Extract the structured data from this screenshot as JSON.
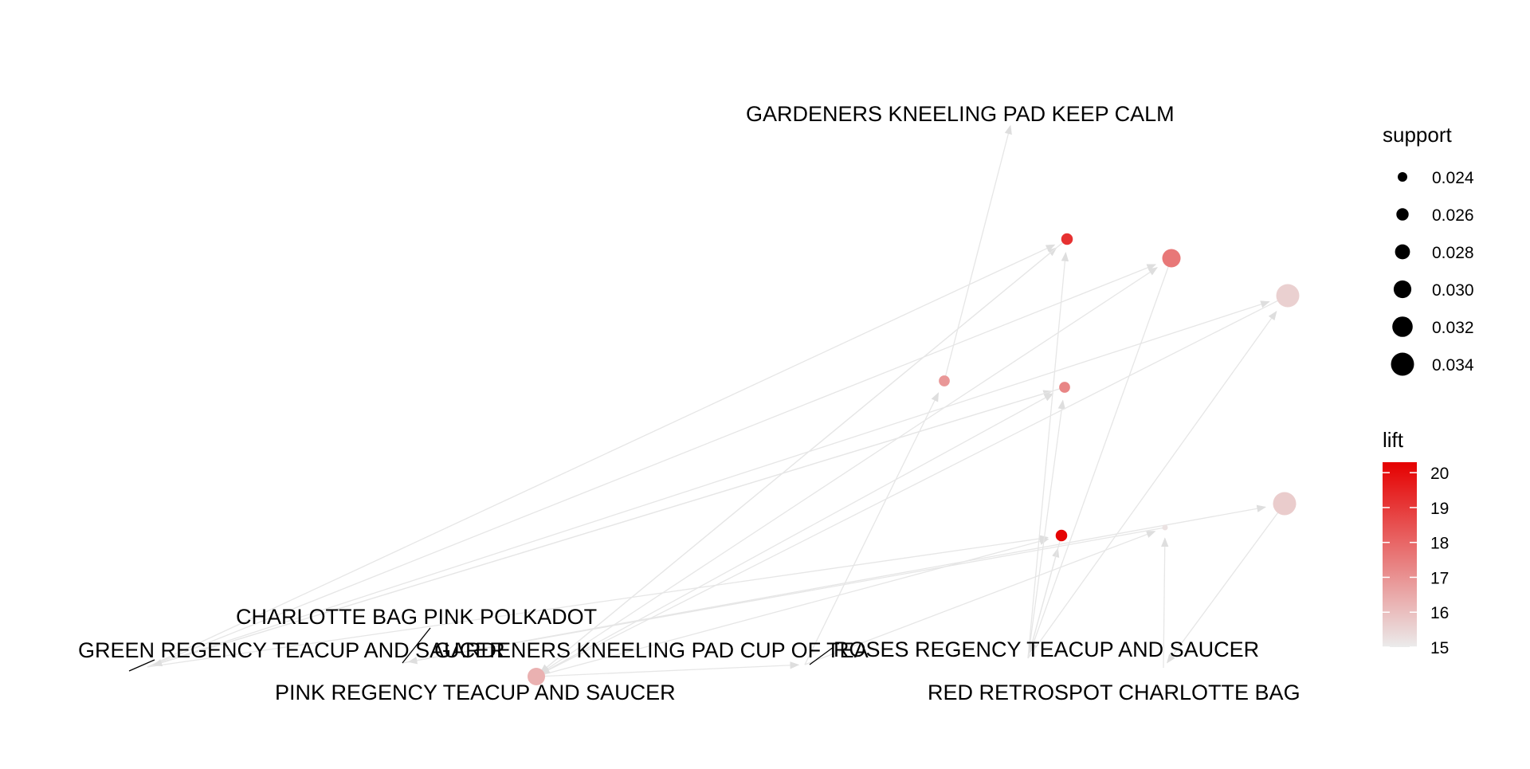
{
  "graph": {
    "items": [
      {
        "id": "gardeners_calm",
        "label": "GARDENERS KNEELING PAD KEEP CALM"
      },
      {
        "id": "charlotte_pink",
        "label": "CHARLOTTE BAG PINK POLKADOT"
      },
      {
        "id": "green_teacup",
        "label": "GREEN REGENCY TEACUP AND SAUCER"
      },
      {
        "id": "gardeners_cup",
        "label": "GARDENERS KNEELING PAD CUP OF TEA"
      },
      {
        "id": "roses_teacup",
        "label": "ROSES REGENCY TEACUP AND SAUCER"
      },
      {
        "id": "pink_teacup",
        "label": "PINK REGENCY TEACUP AND SAUCER"
      },
      {
        "id": "red_charlotte",
        "label": "RED RETROSPOT CHARLOTTE BAG"
      }
    ],
    "rules": [
      {
        "id": "r1",
        "support": 0.0255,
        "lift": 19.2
      },
      {
        "id": "r2",
        "support": 0.0305,
        "lift": 17.6
      },
      {
        "id": "r3",
        "support": 0.034,
        "lift": 15.6
      },
      {
        "id": "r4",
        "support": 0.025,
        "lift": 16.9
      },
      {
        "id": "r5",
        "support": 0.025,
        "lift": 17.3
      },
      {
        "id": "r6",
        "support": 0.0255,
        "lift": 20.2
      },
      {
        "id": "r7",
        "support": 0.023,
        "lift": 15.2
      },
      {
        "id": "r8",
        "support": 0.034,
        "lift": 15.7
      },
      {
        "id": "r9",
        "support": 0.0275,
        "lift": 16.3
      }
    ],
    "edges": [
      [
        "green_teacup",
        "r1"
      ],
      [
        "green_teacup",
        "r2"
      ],
      [
        "green_teacup",
        "r3"
      ],
      [
        "green_teacup",
        "r5"
      ],
      [
        "green_teacup",
        "r6"
      ],
      [
        "pink_teacup",
        "r1"
      ],
      [
        "pink_teacup",
        "r2"
      ],
      [
        "pink_teacup",
        "r6"
      ],
      [
        "pink_teacup",
        "r5"
      ],
      [
        "roses_teacup",
        "r1"
      ],
      [
        "roses_teacup",
        "r3"
      ],
      [
        "roses_teacup",
        "r5"
      ],
      [
        "roses_teacup",
        "r6"
      ],
      [
        "gardeners_cup",
        "r4"
      ],
      [
        "gardeners_cup",
        "r7"
      ],
      [
        "red_charlotte",
        "r7"
      ],
      [
        "charlotte_pink",
        "r8"
      ],
      [
        "r1",
        "pink_teacup"
      ],
      [
        "r2",
        "roses_teacup"
      ],
      [
        "r3",
        "pink_teacup"
      ],
      [
        "r5",
        "green_teacup"
      ],
      [
        "r6",
        "roses_teacup"
      ],
      [
        "r4",
        "gardeners_calm"
      ],
      [
        "r7",
        "charlotte_pink"
      ],
      [
        "r8",
        "red_charlotte"
      ],
      [
        "r9",
        "gardeners_cup"
      ]
    ]
  },
  "legend": {
    "support": {
      "title": "support",
      "entries": [
        {
          "value": 0.024,
          "label": "0.024"
        },
        {
          "value": 0.026,
          "label": "0.026"
        },
        {
          "value": 0.028,
          "label": "0.028"
        },
        {
          "value": 0.03,
          "label": "0.030"
        },
        {
          "value": 0.032,
          "label": "0.032"
        },
        {
          "value": 0.034,
          "label": "0.034"
        }
      ]
    },
    "lift": {
      "title": "lift",
      "min": 15,
      "max": 20.3,
      "low_color": "#ebebeb",
      "high_color": "#e50000",
      "ticks": [
        "20",
        "19",
        "18",
        "17",
        "16",
        "15"
      ]
    }
  },
  "colors": {
    "edge": "#e6e6e6",
    "arrow": "#e0e0e0",
    "leader": "#000000"
  }
}
